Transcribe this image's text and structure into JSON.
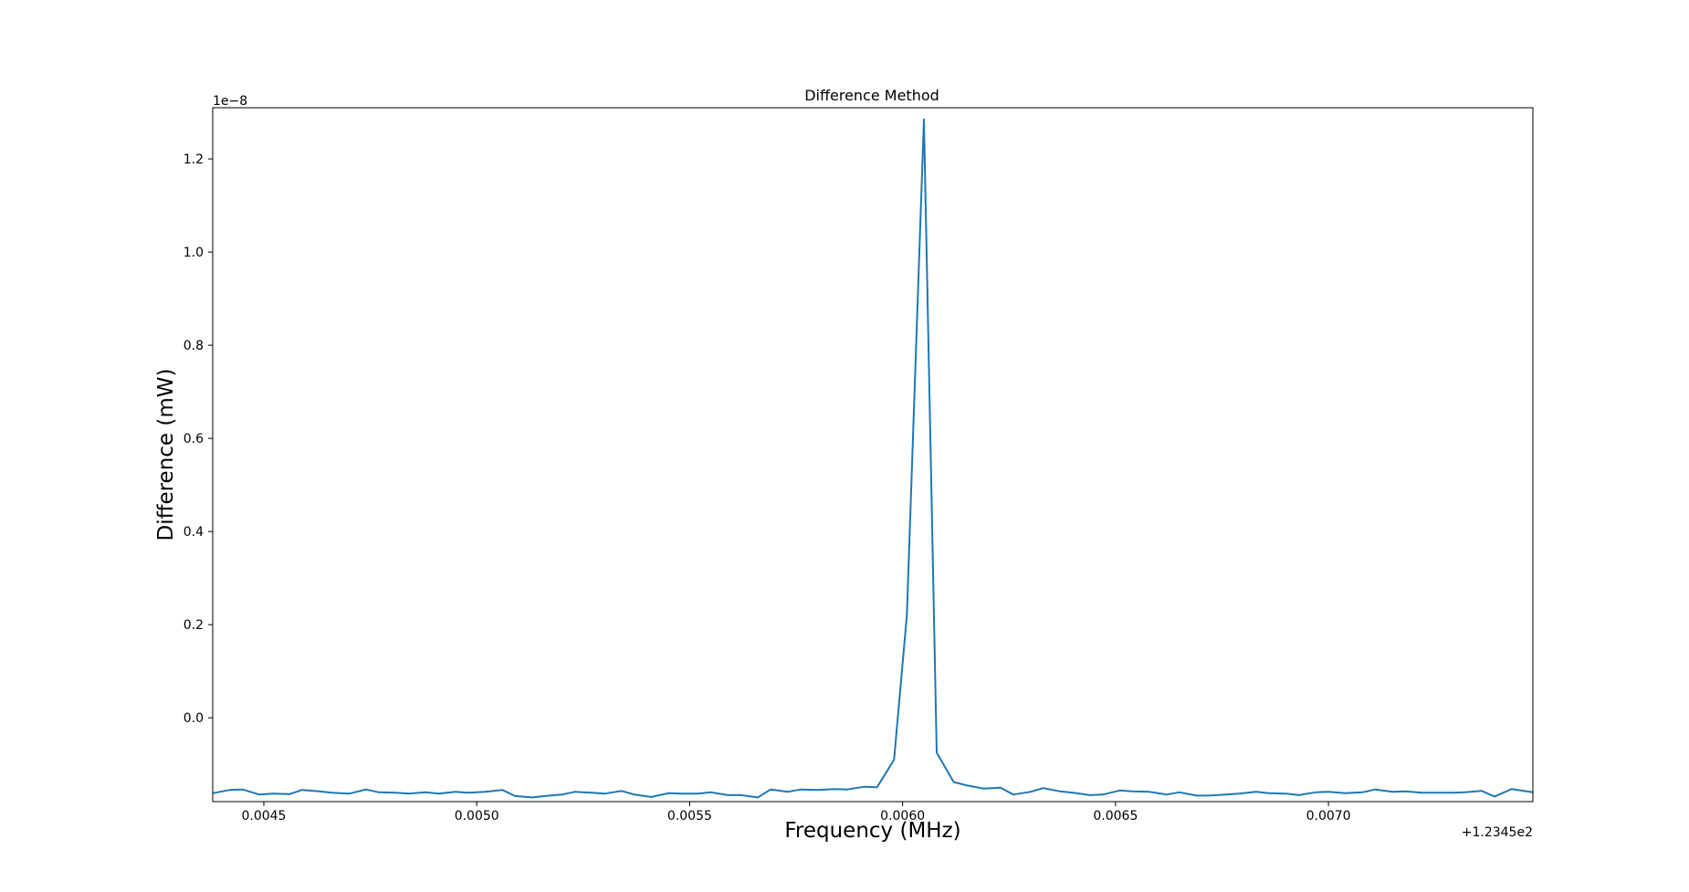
{
  "chart_data": {
    "type": "line",
    "title": "Difference Method",
    "xlabel": "Frequency (MHz)",
    "ylabel": "Difference (mW)",
    "x_offset_label": "+1.2345e2",
    "y_scale_label": "1e−8",
    "xlim": [
      0.00438,
      0.00748
    ],
    "ylim": [
      -0.18,
      1.31
    ],
    "xticks": [
      0.0045,
      0.005,
      0.0055,
      0.006,
      0.0065,
      0.007
    ],
    "xtick_labels": [
      "0.0045",
      "0.0050",
      "0.0055",
      "0.0060",
      "0.0065",
      "0.0070"
    ],
    "yticks": [
      0.0,
      0.2,
      0.4,
      0.6,
      0.8,
      1.0,
      1.2
    ],
    "ytick_labels": [
      "0.0",
      "0.2",
      "0.4",
      "0.6",
      "0.8",
      "1.0",
      "1.2"
    ],
    "grid": false,
    "line_color": "#1f77b4",
    "series": [
      {
        "x": [
          0.00438,
          0.00442,
          0.00445,
          0.00449,
          0.00452,
          0.00456,
          0.00459,
          0.00463,
          0.00466,
          0.0047,
          0.00474,
          0.00477,
          0.00481,
          0.00484,
          0.00488,
          0.00491,
          0.00495,
          0.00498,
          0.00502,
          0.00506,
          0.00509,
          0.00513,
          0.00516,
          0.0052,
          0.00523,
          0.00527,
          0.0053,
          0.00534,
          0.00537,
          0.00541,
          0.00545,
          0.00548,
          0.00552,
          0.00555,
          0.00559,
          0.00562,
          0.00566,
          0.00569,
          0.00573,
          0.00576,
          0.0058,
          0.00584,
          0.00587,
          0.00591,
          0.00594,
          0.00598,
          0.00601,
          0.00605,
          0.00608,
          0.00612,
          0.00615,
          0.00619,
          0.00623,
          0.00626,
          0.0063,
          0.00633,
          0.00637,
          0.0064,
          0.00644,
          0.00647,
          0.00651,
          0.00654,
          0.00658,
          0.00662,
          0.00665,
          0.00669,
          0.00672,
          0.00676,
          0.00679,
          0.00683,
          0.00686,
          0.0069,
          0.00693,
          0.00697,
          0.007,
          0.00704,
          0.00708,
          0.00711,
          0.00715,
          0.00718,
          0.00722,
          0.00725,
          0.00729,
          0.00732,
          0.00736,
          0.00739,
          0.00743,
          0.00748
        ],
        "y": [
          -0.162,
          -0.155,
          -0.154,
          -0.165,
          -0.163,
          -0.164,
          -0.155,
          -0.158,
          -0.161,
          -0.163,
          -0.154,
          -0.16,
          -0.161,
          -0.163,
          -0.16,
          -0.163,
          -0.159,
          -0.161,
          -0.159,
          -0.155,
          -0.168,
          -0.171,
          -0.168,
          -0.165,
          -0.159,
          -0.161,
          -0.163,
          -0.157,
          -0.165,
          -0.17,
          -0.162,
          -0.163,
          -0.163,
          -0.16,
          -0.166,
          -0.166,
          -0.171,
          -0.154,
          -0.159,
          -0.154,
          -0.155,
          -0.153,
          -0.154,
          -0.148,
          -0.149,
          -0.09,
          0.22,
          1.285,
          -0.075,
          -0.138,
          -0.145,
          -0.152,
          -0.15,
          -0.165,
          -0.159,
          -0.151,
          -0.158,
          -0.161,
          -0.166,
          -0.165,
          -0.156,
          -0.158,
          -0.159,
          -0.165,
          -0.16,
          -0.167,
          -0.167,
          -0.165,
          -0.163,
          -0.159,
          -0.162,
          -0.163,
          -0.166,
          -0.16,
          -0.159,
          -0.162,
          -0.16,
          -0.154,
          -0.159,
          -0.158,
          -0.161,
          -0.161,
          -0.161,
          -0.16,
          -0.157,
          -0.169,
          -0.153,
          -0.16
        ]
      }
    ]
  }
}
